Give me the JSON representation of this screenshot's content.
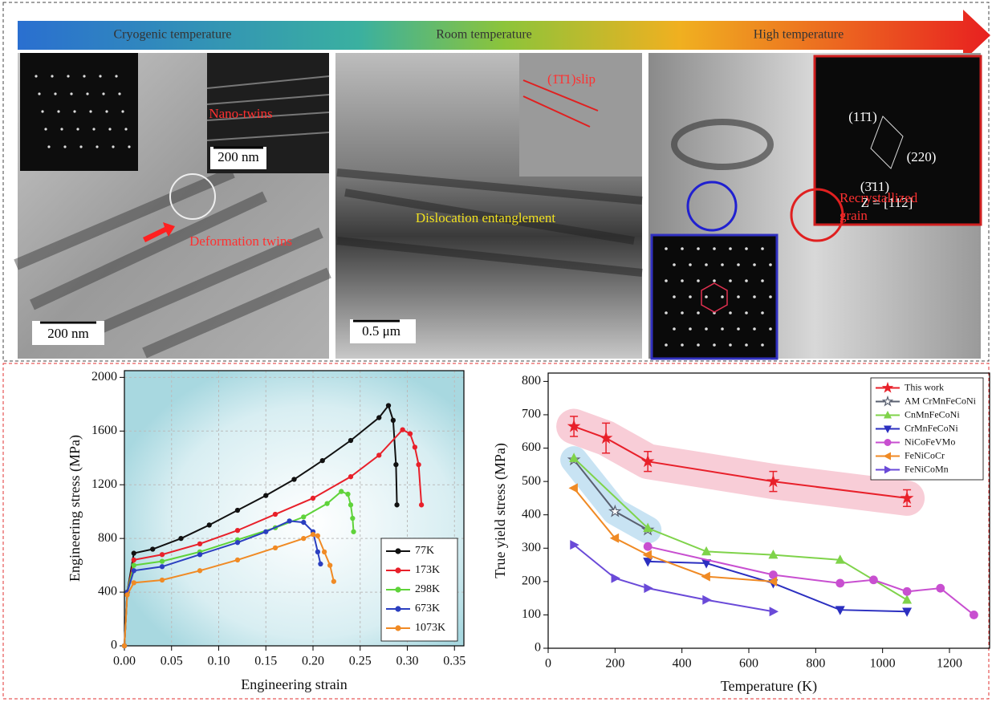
{
  "top_panel": {
    "arrow_labels": [
      "Cryogenic temperature",
      "Room temperature",
      "High temperature"
    ],
    "panels": [
      {
        "annotations": [
          "Nano-twins",
          "200 nm",
          "Deformation twins",
          "200 nm"
        ]
      },
      {
        "annotations": [
          "(1̄1̄1)slip",
          "Dislocation entanglement",
          "0.5 μm"
        ]
      },
      {
        "annotations": [
          "(11̄1)",
          "(220)",
          "(3̄11)",
          "Z = [112]",
          "Recrystallized grain"
        ]
      }
    ]
  },
  "chart_data": [
    {
      "type": "line",
      "x_label": "Engineering strain",
      "y_label": "Engineering stress (MPa)",
      "xlim": [
        0,
        0.36
      ],
      "ylim": [
        0,
        2050
      ],
      "xticks": [
        {
          "value": 0,
          "label": "0.00"
        },
        0.05,
        {
          "value": 0.1,
          "label": "0.10"
        },
        0.15,
        {
          "value": 0.2,
          "label": "0.20"
        },
        0.25,
        {
          "value": 0.3,
          "label": "0.30"
        },
        0.35
      ],
      "yticks": [
        0,
        400,
        800,
        1200,
        1600,
        2000
      ],
      "grid": true,
      "legend": "lower right",
      "series": [
        {
          "name": "77K",
          "color": "#111111",
          "marker": "circle",
          "x": [
            0,
            0.003,
            0.01,
            0.03,
            0.06,
            0.09,
            0.12,
            0.15,
            0.18,
            0.21,
            0.24,
            0.27,
            0.28,
            0.285,
            0.288,
            0.289
          ],
          "values": [
            0,
            400,
            690,
            720,
            800,
            900,
            1010,
            1120,
            1240,
            1380,
            1530,
            1700,
            1790,
            1680,
            1350,
            1050
          ]
        },
        {
          "name": "173K",
          "color": "#e8202a",
          "marker": "circle",
          "x": [
            0,
            0.003,
            0.01,
            0.04,
            0.08,
            0.12,
            0.16,
            0.2,
            0.24,
            0.27,
            0.295,
            0.303,
            0.308,
            0.312,
            0.315
          ],
          "values": [
            0,
            400,
            640,
            680,
            760,
            860,
            980,
            1100,
            1260,
            1420,
            1610,
            1580,
            1480,
            1350,
            1050
          ]
        },
        {
          "name": "298K",
          "color": "#5fd33a",
          "marker": "circle",
          "x": [
            0,
            0.003,
            0.01,
            0.04,
            0.08,
            0.12,
            0.16,
            0.19,
            0.215,
            0.23,
            0.237,
            0.24,
            0.242,
            0.243
          ],
          "values": [
            0,
            400,
            600,
            630,
            700,
            790,
            880,
            960,
            1060,
            1150,
            1130,
            1050,
            950,
            850
          ]
        },
        {
          "name": "673K",
          "color": "#2b3fc0",
          "marker": "circle",
          "x": [
            0,
            0.003,
            0.01,
            0.04,
            0.08,
            0.12,
            0.15,
            0.175,
            0.19,
            0.2,
            0.205,
            0.208
          ],
          "values": [
            0,
            400,
            560,
            590,
            680,
            770,
            850,
            930,
            920,
            850,
            700,
            610
          ]
        },
        {
          "name": "1073K",
          "color": "#f08a24",
          "marker": "circle",
          "x": [
            0,
            0.003,
            0.01,
            0.04,
            0.08,
            0.12,
            0.16,
            0.19,
            0.2,
            0.205,
            0.212,
            0.218,
            0.222
          ],
          "values": [
            0,
            380,
            470,
            490,
            560,
            640,
            730,
            800,
            830,
            820,
            700,
            600,
            480
          ]
        }
      ]
    },
    {
      "type": "line",
      "x_label": "Temperature (K)",
      "y_label": "True yield stress (MPa)",
      "xlim": [
        0,
        1320
      ],
      "ylim": [
        0,
        825
      ],
      "xticks": [
        0,
        200,
        400,
        600,
        800,
        1000,
        1200
      ],
      "yticks": [
        0,
        100,
        200,
        300,
        400,
        500,
        600,
        700,
        800
      ],
      "grid": false,
      "legend": "upper right",
      "series": [
        {
          "name": "This work",
          "color": "#e8202a",
          "marker": "star",
          "highlight_color": "#e85a7a",
          "x": [
            77,
            173,
            298,
            673,
            1073
          ],
          "values": [
            665,
            630,
            560,
            500,
            450
          ],
          "errors": [
            30,
            45,
            30,
            30,
            25
          ]
        },
        {
          "name": "AM CrMnFeCoNi",
          "color": "#5a6070",
          "marker": "star-open",
          "highlight_color": "#4aa3d8",
          "x": [
            77,
            200,
            298
          ],
          "values": [
            565,
            410,
            355
          ]
        },
        {
          "name": "CnMnFeCoNi",
          "color": "#7fd34a",
          "marker": "triangle-up",
          "x": [
            77,
            298,
            473,
            673,
            873,
            1073
          ],
          "values": [
            570,
            360,
            290,
            280,
            265,
            145
          ]
        },
        {
          "name": "CrMnFeCoNi",
          "color": "#2b2fc0",
          "marker": "triangle-down",
          "x": [
            298,
            473,
            673,
            873,
            1073
          ],
          "values": [
            260,
            255,
            195,
            115,
            110
          ]
        },
        {
          "name": "NiCoFeVMo",
          "color": "#c84fd0",
          "marker": "circle",
          "x": [
            298,
            673,
            873,
            973,
            1073,
            1173,
            1273
          ],
          "values": [
            305,
            220,
            195,
            205,
            170,
            180,
            100
          ]
        },
        {
          "name": "FeNiCoCr",
          "color": "#f08a24",
          "marker": "triangle-left",
          "x": [
            77,
            200,
            298,
            473,
            673
          ],
          "values": [
            480,
            330,
            280,
            215,
            200
          ]
        },
        {
          "name": "FeNiCoMn",
          "color": "#6a4ad8",
          "marker": "triangle-right",
          "x": [
            77,
            200,
            298,
            473,
            673
          ],
          "values": [
            310,
            210,
            180,
            145,
            110
          ]
        }
      ]
    }
  ]
}
